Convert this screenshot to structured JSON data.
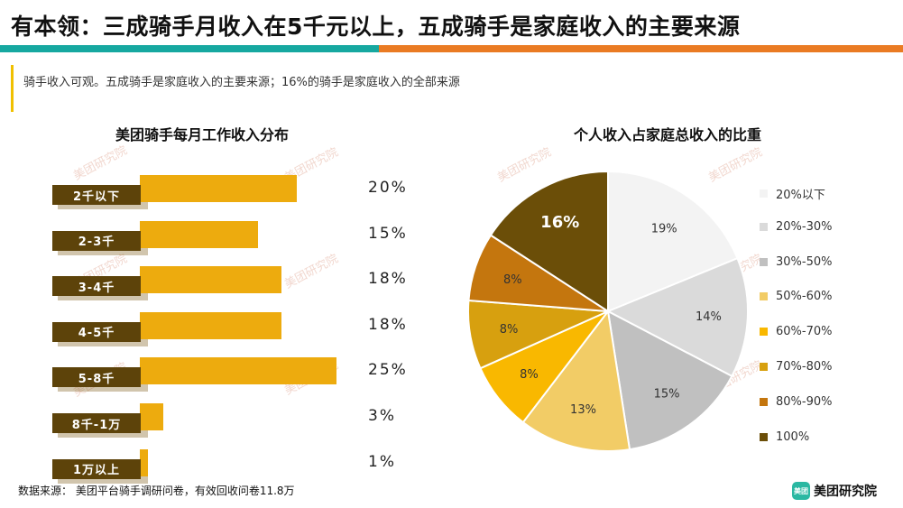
{
  "header": {
    "title": "有本领：三成骑手月收入在5千元以上，五成骑手是家庭收入的主要来源",
    "subtitle": "骑手收入可观。五成骑手是家庭收入的主要来源；16%的骑手是家庭收入的全部来源"
  },
  "watermark": "美团研究院",
  "colors": {
    "teal": "#16a8a0",
    "orange": "#ea7b23",
    "bar": "#edab0e",
    "label_bg": "#5d430a"
  },
  "chart_data": [
    {
      "type": "bar",
      "orientation": "horizontal",
      "title": "美团骑手每月工作收入分布",
      "categories": [
        "2千以下",
        "2-3千",
        "3-4千",
        "4-5千",
        "5-8千",
        "8千-1万",
        "1万以上"
      ],
      "values": [
        20,
        15,
        18,
        18,
        25,
        3,
        1
      ],
      "value_labels": [
        "20%",
        "15%",
        "18%",
        "18%",
        "25%",
        "3%",
        "1%"
      ],
      "unit": "%"
    },
    {
      "type": "pie",
      "title": "个人收入占家庭总收入的比重",
      "labels": [
        "20%以下",
        "20%-30%",
        "30%-50%",
        "50%-60%",
        "60%-70%",
        "70%-80%",
        "80%-90%",
        "100%"
      ],
      "values": [
        19,
        14,
        15,
        13,
        8,
        8,
        8,
        16
      ],
      "value_labels": [
        "19%",
        "14%",
        "15%",
        "13%",
        "8%",
        "8%",
        "8%",
        "16%"
      ],
      "colors": [
        "#f3f3f3",
        "#dadada",
        "#c0c0c0",
        "#f2cc66",
        "#f9b800",
        "#d7a00f",
        "#c4760e",
        "#6b4e08"
      ],
      "legend_position": "right"
    }
  ],
  "footer": {
    "source": "数据来源： 美团平台骑手调研问卷，有效回收问卷11.8万",
    "logo_text": "美团研究院",
    "logo_icon_text": "美团"
  }
}
